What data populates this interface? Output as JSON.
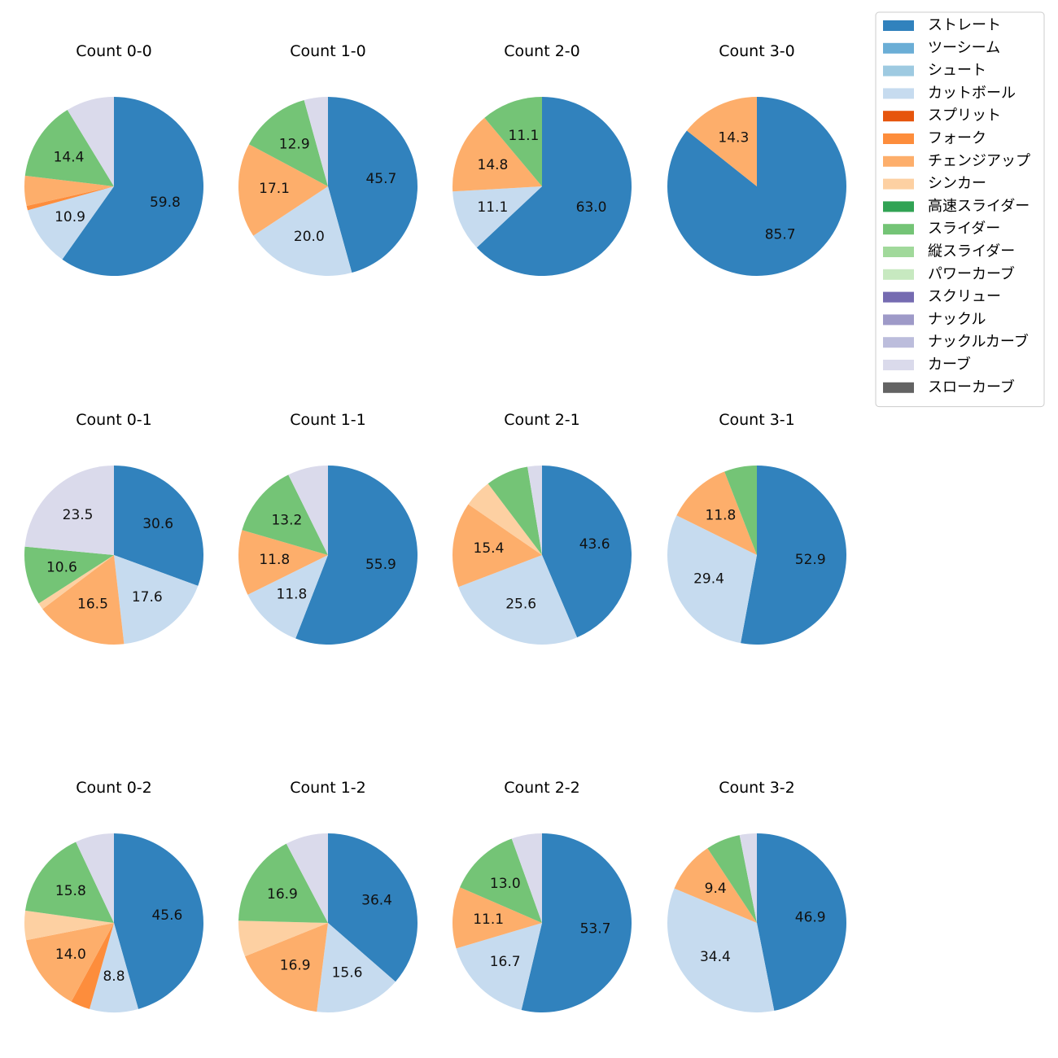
{
  "chart_data": {
    "type": "pie",
    "layout": "3x4 grid of pies, legend top-right",
    "legend": {
      "placement": "top-right",
      "entries": [
        {
          "name": "ストレート",
          "color": "#3182bd"
        },
        {
          "name": "ツーシーム",
          "color": "#6baed6"
        },
        {
          "name": "シュート",
          "color": "#9ecae1"
        },
        {
          "name": "カットボール",
          "color": "#c6dbef"
        },
        {
          "name": "スプリット",
          "color": "#e6550d"
        },
        {
          "name": "フォーク",
          "color": "#fd8d3c"
        },
        {
          "name": "チェンジアップ",
          "color": "#fdae6b"
        },
        {
          "name": "シンカー",
          "color": "#fdd0a2"
        },
        {
          "name": "高速スライダー",
          "color": "#31a354"
        },
        {
          "name": "スライダー",
          "color": "#74c476"
        },
        {
          "name": "縦スライダー",
          "color": "#a1d99b"
        },
        {
          "name": "パワーカーブ",
          "color": "#c7e9c0"
        },
        {
          "name": "スクリュー",
          "color": "#756bb1"
        },
        {
          "name": "ナックル",
          "color": "#9e9ac8"
        },
        {
          "name": "ナックルカーブ",
          "color": "#bcbddc"
        },
        {
          "name": "カーブ",
          "color": "#dadaeb"
        },
        {
          "name": "スローカーブ",
          "color": "#636363"
        }
      ]
    },
    "charts": [
      {
        "title": "Count 0-0",
        "slices": [
          {
            "pitch": "ストレート",
            "value": 59.8,
            "label": "59.8"
          },
          {
            "pitch": "カットボール",
            "value": 10.9,
            "label": "10.9"
          },
          {
            "pitch": "フォーク",
            "value": 0.8,
            "label": ""
          },
          {
            "pitch": "チェンジアップ",
            "value": 5.4,
            "label": ""
          },
          {
            "pitch": "スライダー",
            "value": 14.4,
            "label": "14.4"
          },
          {
            "pitch": "カーブ",
            "value": 8.7,
            "label": ""
          }
        ]
      },
      {
        "title": "Count 1-0",
        "slices": [
          {
            "pitch": "ストレート",
            "value": 45.7,
            "label": "45.7"
          },
          {
            "pitch": "カットボール",
            "value": 20.0,
            "label": "20.0"
          },
          {
            "pitch": "チェンジアップ",
            "value": 17.1,
            "label": "17.1"
          },
          {
            "pitch": "スライダー",
            "value": 12.9,
            "label": "12.9"
          },
          {
            "pitch": "カーブ",
            "value": 4.3,
            "label": ""
          }
        ]
      },
      {
        "title": "Count 2-0",
        "slices": [
          {
            "pitch": "ストレート",
            "value": 63.0,
            "label": "63.0"
          },
          {
            "pitch": "カットボール",
            "value": 11.1,
            "label": "11.1"
          },
          {
            "pitch": "チェンジアップ",
            "value": 14.8,
            "label": "14.8"
          },
          {
            "pitch": "スライダー",
            "value": 11.1,
            "label": "11.1"
          }
        ]
      },
      {
        "title": "Count 3-0",
        "slices": [
          {
            "pitch": "ストレート",
            "value": 85.7,
            "label": "85.7"
          },
          {
            "pitch": "チェンジアップ",
            "value": 14.3,
            "label": "14.3"
          }
        ]
      },
      {
        "title": "Count 0-1",
        "slices": [
          {
            "pitch": "ストレート",
            "value": 30.6,
            "label": "30.6"
          },
          {
            "pitch": "カットボール",
            "value": 17.6,
            "label": "17.6"
          },
          {
            "pitch": "チェンジアップ",
            "value": 16.5,
            "label": "16.5"
          },
          {
            "pitch": "シンカー",
            "value": 1.2,
            "label": ""
          },
          {
            "pitch": "スライダー",
            "value": 10.6,
            "label": "10.6"
          },
          {
            "pitch": "カーブ",
            "value": 23.5,
            "label": "23.5"
          }
        ]
      },
      {
        "title": "Count 1-1",
        "slices": [
          {
            "pitch": "ストレート",
            "value": 55.9,
            "label": "55.9"
          },
          {
            "pitch": "カットボール",
            "value": 11.8,
            "label": "11.8"
          },
          {
            "pitch": "チェンジアップ",
            "value": 11.8,
            "label": "11.8"
          },
          {
            "pitch": "スライダー",
            "value": 13.2,
            "label": "13.2"
          },
          {
            "pitch": "カーブ",
            "value": 7.3,
            "label": ""
          }
        ]
      },
      {
        "title": "Count 2-1",
        "slices": [
          {
            "pitch": "ストレート",
            "value": 43.6,
            "label": "43.6"
          },
          {
            "pitch": "カットボール",
            "value": 25.6,
            "label": "25.6"
          },
          {
            "pitch": "チェンジアップ",
            "value": 15.4,
            "label": "15.4"
          },
          {
            "pitch": "シンカー",
            "value": 5.1,
            "label": ""
          },
          {
            "pitch": "スライダー",
            "value": 7.7,
            "label": ""
          },
          {
            "pitch": "カーブ",
            "value": 2.6,
            "label": ""
          }
        ]
      },
      {
        "title": "Count 3-1",
        "slices": [
          {
            "pitch": "ストレート",
            "value": 52.9,
            "label": "52.9"
          },
          {
            "pitch": "カットボール",
            "value": 29.4,
            "label": "29.4"
          },
          {
            "pitch": "チェンジアップ",
            "value": 11.8,
            "label": "11.8"
          },
          {
            "pitch": "スライダー",
            "value": 5.9,
            "label": ""
          }
        ]
      },
      {
        "title": "Count 0-2",
        "slices": [
          {
            "pitch": "ストレート",
            "value": 45.6,
            "label": "45.6"
          },
          {
            "pitch": "カットボール",
            "value": 8.8,
            "label": "8.8"
          },
          {
            "pitch": "フォーク",
            "value": 3.5,
            "label": ""
          },
          {
            "pitch": "チェンジアップ",
            "value": 14.0,
            "label": "14.0"
          },
          {
            "pitch": "シンカー",
            "value": 5.3,
            "label": ""
          },
          {
            "pitch": "スライダー",
            "value": 15.8,
            "label": "15.8"
          },
          {
            "pitch": "カーブ",
            "value": 7.0,
            "label": ""
          }
        ]
      },
      {
        "title": "Count 1-2",
        "slices": [
          {
            "pitch": "ストレート",
            "value": 36.4,
            "label": "36.4"
          },
          {
            "pitch": "カットボール",
            "value": 15.6,
            "label": "15.6"
          },
          {
            "pitch": "チェンジアップ",
            "value": 16.9,
            "label": "16.9"
          },
          {
            "pitch": "シンカー",
            "value": 6.5,
            "label": ""
          },
          {
            "pitch": "スライダー",
            "value": 16.9,
            "label": "16.9"
          },
          {
            "pitch": "カーブ",
            "value": 7.7,
            "label": ""
          }
        ]
      },
      {
        "title": "Count 2-2",
        "slices": [
          {
            "pitch": "ストレート",
            "value": 53.7,
            "label": "53.7"
          },
          {
            "pitch": "カットボール",
            "value": 16.7,
            "label": "16.7"
          },
          {
            "pitch": "チェンジアップ",
            "value": 11.1,
            "label": "11.1"
          },
          {
            "pitch": "スライダー",
            "value": 13.0,
            "label": "13.0"
          },
          {
            "pitch": "カーブ",
            "value": 5.5,
            "label": ""
          }
        ]
      },
      {
        "title": "Count 3-2",
        "slices": [
          {
            "pitch": "ストレート",
            "value": 46.9,
            "label": "46.9"
          },
          {
            "pitch": "カットボール",
            "value": 34.4,
            "label": "34.4"
          },
          {
            "pitch": "チェンジアップ",
            "value": 9.4,
            "label": "9.4"
          },
          {
            "pitch": "スライダー",
            "value": 6.2,
            "label": ""
          },
          {
            "pitch": "カーブ",
            "value": 3.1,
            "label": ""
          }
        ]
      }
    ]
  }
}
